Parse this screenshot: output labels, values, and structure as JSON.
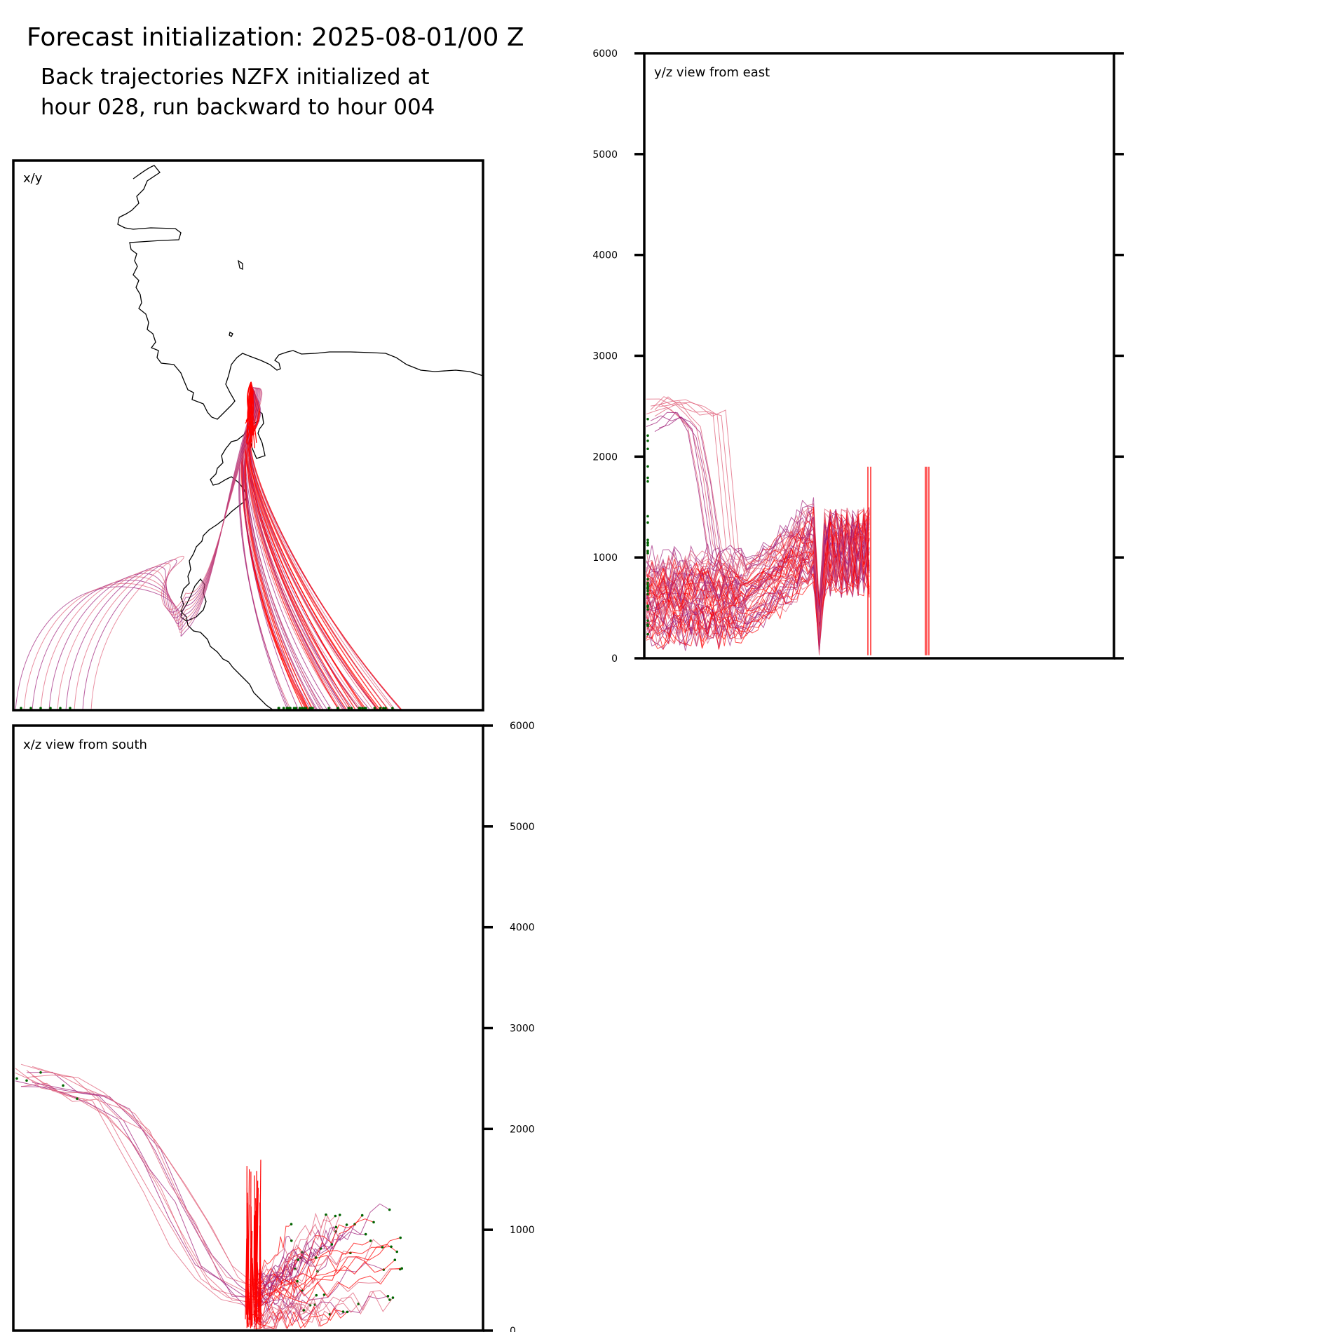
{
  "header": {
    "title": "Forecast initialization: 2025-08-01/00 Z",
    "subtitle_line1": "Back trajectories NZFX initialized at",
    "subtitle_line2": "hour 028, run backward to hour 004"
  },
  "colors": {
    "trajectory_main": "#ff0000",
    "trajectory_faint": "#e0607a",
    "trajectory_purple": "#a0207a",
    "start_marker": "#006400",
    "coastline": "#000000"
  },
  "chart_data": [
    {
      "type": "map",
      "panel": "x/y",
      "label": "x/y",
      "features": [
        "coastline",
        "trajectories",
        "start-markers"
      ],
      "trajectory_origin_region": "south edge of domain",
      "trajectory_end_region": "head of inlet near top-center"
    },
    {
      "type": "line",
      "panel": "y/z",
      "label": "y/z view from east",
      "ylim": [
        0,
        6000
      ],
      "yticks": [
        0,
        1000,
        2000,
        3000,
        4000,
        5000,
        6000
      ],
      "ytick_labels": [
        "0",
        "1000",
        "2000",
        "3000",
        "4000",
        "5000",
        "6000"
      ],
      "ytick_side": "left",
      "series": [
        {
          "values": [
            2450,
            2480,
            2500,
            2420,
            2300,
            1800,
            1100,
            900,
            800,
            700
          ]
        },
        {
          "values": [
            2300,
            2350,
            2400,
            2380,
            2250,
            1700,
            1000,
            850,
            760,
            690
          ]
        },
        {
          "values": [
            2520,
            2540,
            2530,
            2500,
            2460,
            2420,
            1100,
            900
          ]
        },
        {
          "values": [
            900,
            850,
            700,
            600,
            550,
            600,
            800,
            1000,
            1200,
            1550,
            200,
            1200,
            1100,
            1300
          ]
        },
        {
          "values": [
            600,
            500,
            450,
            400,
            420,
            500,
            700,
            850,
            950,
            1100,
            100,
            900,
            1000,
            1200
          ]
        },
        {
          "values": [
            400,
            350,
            300,
            280,
            300,
            350,
            400,
            500,
            600,
            700,
            50,
            60,
            80,
            1100
          ]
        }
      ]
    },
    {
      "type": "line",
      "panel": "x/z",
      "label": "x/z view from south",
      "ylim": [
        0,
        6000
      ],
      "yticks": [
        0,
        1000,
        2000,
        3000,
        4000,
        5000,
        6000
      ],
      "ytick_labels": [
        "0",
        "1000",
        "2000",
        "3000",
        "4000",
        "5000",
        "6000"
      ],
      "ytick_side": "right",
      "series": [
        {
          "values": [
            2500,
            2450,
            2350,
            2200,
            1900,
            1400,
            900,
            500,
            300,
            250
          ]
        },
        {
          "values": [
            2520,
            2480,
            2400,
            2300,
            2100,
            1700,
            1200,
            700,
            400,
            300
          ]
        },
        {
          "values": [
            2550,
            2500,
            2450,
            2380,
            2200,
            1900,
            1500,
            1000,
            600,
            350
          ]
        },
        {
          "values": [
            200,
            800,
            1000,
            1050,
            1100,
            1150,
            1200
          ]
        },
        {
          "values": [
            300,
            600,
            800,
            900,
            920,
            950,
            980
          ]
        },
        {
          "values": [
            150,
            300,
            400,
            450,
            500,
            520,
            550
          ]
        }
      ]
    }
  ]
}
